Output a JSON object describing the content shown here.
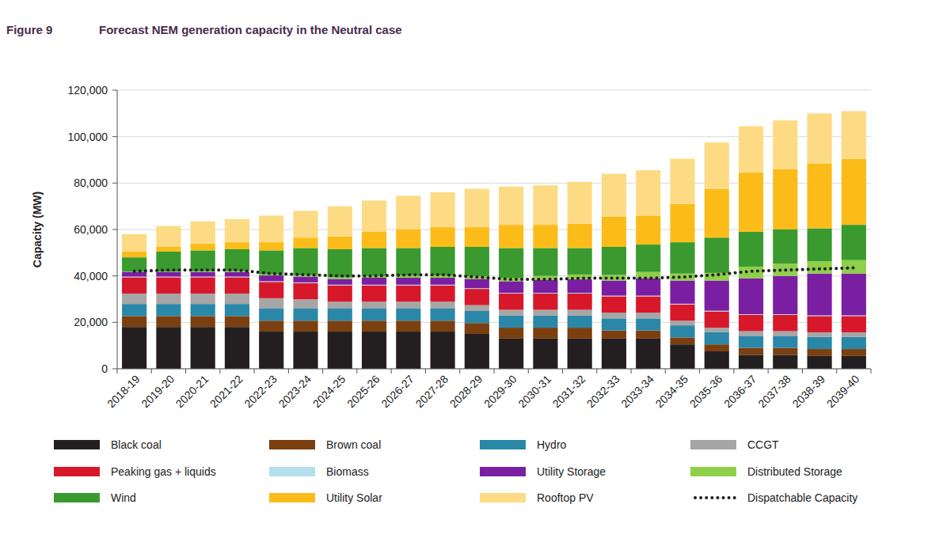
{
  "chart_data": {
    "type": "bar",
    "figure_label": "Figure 9",
    "title": "Forecast NEM generation capacity in the Neutral case",
    "y_label": "Capacity (MW)",
    "stacked": true,
    "grid": true,
    "legend": "bottom",
    "categories": [
      "2018-19",
      "2019-20",
      "2020-21",
      "2021-22",
      "2022-23",
      "2023-24",
      "2024-25",
      "2025-26",
      "2026-27",
      "2027-28",
      "2028-29",
      "2029-30",
      "2030-31",
      "2031-32",
      "2032-33",
      "2033-34",
      "2034-35",
      "2035-36",
      "2036-37",
      "2037-38",
      "2038-39",
      "2039-40"
    ],
    "ylim": [
      0,
      120000
    ],
    "yticks": [
      0,
      {
        "value": 20000,
        "label": "20,000"
      },
      {
        "value": 40000,
        "label": "40,000"
      },
      {
        "value": 60000,
        "label": "60,000"
      },
      {
        "value": 80000,
        "label": "80,000"
      },
      {
        "value": 100000,
        "label": "100,000"
      },
      {
        "value": 120000,
        "label": "120,000"
      }
    ],
    "series": [
      {
        "name": "Black coal",
        "type": "bar",
        "color": "#231f20",
        "values": [
          18000,
          18000,
          18000,
          18000,
          16000,
          16000,
          16000,
          16000,
          16000,
          16000,
          15000,
          13000,
          13000,
          13000,
          13000,
          13000,
          10500,
          7500,
          6000,
          6000,
          5500,
          5500
        ]
      },
      {
        "name": "Brown coal",
        "type": "bar",
        "color": "#7b3f10",
        "values": [
          4700,
          4700,
          4700,
          4700,
          4700,
          4700,
          4700,
          4700,
          4700,
          4700,
          4700,
          4700,
          4700,
          4700,
          3500,
          3500,
          3000,
          3000,
          3000,
          3000,
          3000,
          3000
        ]
      },
      {
        "name": "Hydro",
        "type": "bar",
        "color": "#2b87a8",
        "values": [
          5200,
          5200,
          5200,
          5200,
          5200,
          5200,
          5200,
          5200,
          5200,
          5200,
          5200,
          5200,
          5200,
          5200,
          5200,
          5200,
          5200,
          5200,
          5200,
          5200,
          5200,
          5200
        ]
      },
      {
        "name": "CCGT",
        "type": "bar",
        "color": "#a6a6a6",
        "values": [
          4500,
          4500,
          4500,
          4500,
          4500,
          4000,
          3000,
          3000,
          3000,
          3000,
          2500,
          2500,
          2500,
          2500,
          2500,
          2500,
          2000,
          2000,
          2000,
          2000,
          2000,
          2000
        ]
      },
      {
        "name": "Peaking gas + liquids",
        "type": "bar",
        "color": "#d7182a",
        "values": [
          7000,
          7000,
          7000,
          7000,
          7000,
          7000,
          7000,
          7000,
          7000,
          7000,
          7000,
          7000,
          7000,
          7000,
          7000,
          7000,
          7000,
          7000,
          7000,
          7000,
          7000,
          7000
        ]
      },
      {
        "name": "Biomass",
        "type": "bar",
        "color": "#b4e0ec",
        "values": [
          300,
          300,
          300,
          300,
          300,
          300,
          300,
          300,
          300,
          300,
          300,
          300,
          300,
          300,
          300,
          300,
          300,
          300,
          300,
          300,
          300,
          300
        ]
      },
      {
        "name": "Utility Storage",
        "type": "bar",
        "color": "#7a1fa2",
        "values": [
          2000,
          2000,
          2000,
          2000,
          2500,
          2500,
          2500,
          3000,
          3000,
          3000,
          4000,
          5000,
          5500,
          5800,
          6500,
          7500,
          10000,
          13000,
          15500,
          16500,
          18000,
          18000
        ]
      },
      {
        "name": "Distributed Storage",
        "type": "bar",
        "color": "#8fcf4a",
        "values": [
          100,
          200,
          300,
          400,
          500,
          600,
          700,
          800,
          900,
          1000,
          1200,
          1500,
          1800,
          2100,
          2400,
          2700,
          3000,
          3300,
          5000,
          5300,
          5300,
          5800
        ]
      },
      {
        "name": "Wind",
        "type": "bar",
        "color": "#3a9a2f",
        "values": [
          6200,
          8600,
          9000,
          9400,
          10300,
          11700,
          12100,
          12000,
          11900,
          12300,
          12600,
          12800,
          12000,
          11400,
          12100,
          11800,
          13500,
          15200,
          15000,
          14700,
          14200,
          15200
        ]
      },
      {
        "name": "Utility Solar",
        "type": "bar",
        "color": "#fbbc1a",
        "values": [
          2500,
          2000,
          3000,
          3000,
          3500,
          4500,
          5500,
          7000,
          8000,
          8500,
          8500,
          10000,
          10000,
          10500,
          13000,
          12500,
          16500,
          21000,
          25500,
          26000,
          28000,
          28500
        ]
      },
      {
        "name": "Rooftop PV",
        "type": "bar",
        "color": "#fcdb84",
        "values": [
          7500,
          9000,
          9500,
          10000,
          11500,
          11500,
          13000,
          13500,
          14500,
          15000,
          16500,
          16500,
          17000,
          18000,
          18500,
          19500,
          19500,
          20000,
          20000,
          21000,
          21500,
          20500
        ]
      },
      {
        "name": "Dispatchable Capacity",
        "type": "line",
        "line_style": "dotted",
        "color": "#222222",
        "values": [
          42000,
          42500,
          42500,
          42500,
          41000,
          40500,
          40000,
          40000,
          40500,
          40500,
          39500,
          38500,
          38500,
          39000,
          39000,
          39000,
          39500,
          40500,
          42000,
          42500,
          43000,
          43500
        ]
      }
    ]
  }
}
